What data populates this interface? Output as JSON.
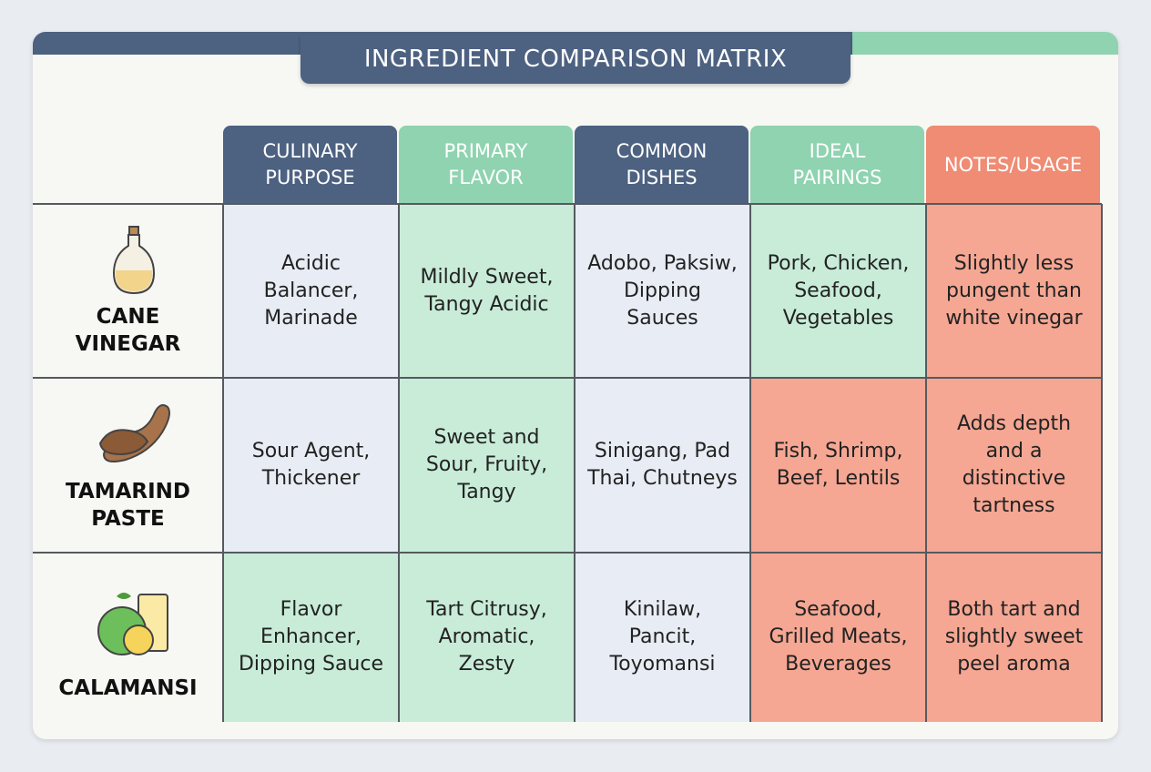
{
  "title": "INGREDIENT COMPARISON MATRIX",
  "table": {
    "columns": [
      "CULINARY PURPOSE",
      "PRIMARY FLAVOR",
      "COMMON DISHES",
      "IDEAL PAIRINGS",
      "NOTES/USAGE"
    ],
    "rows": [
      {
        "name": "CANE VINEGAR",
        "cells": [
          "Acidic Balancer, Marinade",
          "Mildly Sweet, Tangy Acidic",
          "Adobo, Paksiw, Dipping Sauces",
          "Pork, Chicken, Seafood, Vegetables",
          "Slightly less pungent than white vinegar"
        ]
      },
      {
        "name": "TAMARIND PASTE",
        "cells": [
          "Sour Agent, Thickener",
          "Sweet and Sour, Fruity, Tangy",
          "Sinigang, Pad Thai, Chutneys",
          "Fish, Shrimp, Beef, Lentils",
          "Adds depth and a distinctive tartness"
        ]
      },
      {
        "name": "CALAMANSI",
        "cells": [
          "Flavor Enhancer, Dipping Sauce",
          "Tart Citrusy, Aromatic, Zesty",
          "Kinilaw, Pancit, Toyomansi",
          "Seafood, Grilled Meats, Beverages",
          "Both tart and slightly sweet peel aroma"
        ]
      }
    ]
  }
}
